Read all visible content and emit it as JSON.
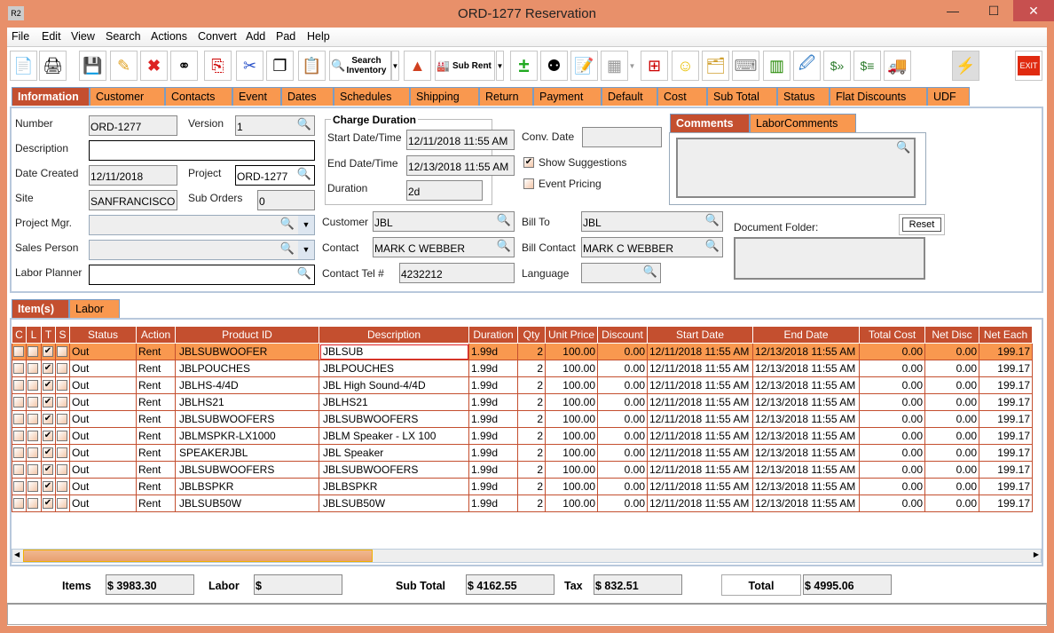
{
  "window": {
    "title": "ORD-1277 Reservation",
    "app_icon": "R2"
  },
  "menu": [
    "File",
    "Edit",
    "View",
    "Search",
    "Actions",
    "Convert",
    "Add",
    "Pad",
    "Help"
  ],
  "toolbar": {
    "search_inventory": "Search Inventory",
    "sub_rent": "Sub Rent",
    "exit": "EXIT"
  },
  "tabs": [
    "Information",
    "Customer",
    "Contacts",
    "Event",
    "Dates",
    "Schedules",
    "Shipping",
    "Return",
    "Payment",
    "Default",
    "Cost",
    "Sub Total",
    "Status",
    "Flat Discounts",
    "UDF"
  ],
  "info": {
    "number_label": "Number",
    "number": "ORD-1277",
    "version_label": "Version",
    "version": "1",
    "description_label": "Description",
    "description": "",
    "date_created_label": "Date Created",
    "date_created": "12/11/2018",
    "project_label": "Project",
    "project": "ORD-1277",
    "site_label": "Site",
    "site": "SANFRANCISCO",
    "sub_orders_label": "Sub Orders",
    "sub_orders": "0",
    "project_mgr_label": "Project Mgr.",
    "project_mgr": "",
    "sales_person_label": "Sales Person",
    "sales_person": "",
    "labor_planner_label": "Labor Planner",
    "labor_planner": "",
    "charge_duration_title": "Charge Duration",
    "start_label": "Start Date/Time",
    "start": "12/11/2018 11:55 AM",
    "end_label": "End Date/Time",
    "end": "12/13/2018 11:55 AM",
    "duration_label": "Duration",
    "duration": "2d",
    "conv_date_label": "Conv. Date",
    "conv_date": "",
    "show_suggestions_label": "Show Suggestions",
    "show_suggestions": true,
    "event_pricing_label": "Event Pricing",
    "event_pricing": false,
    "comment_tabs": [
      "Comments",
      "LaborComments"
    ],
    "comments": "",
    "customer_label": "Customer",
    "customer": "JBL",
    "contact_label": "Contact",
    "contact": "MARK C WEBBER",
    "contact_tel_label": "Contact Tel #",
    "contact_tel": "4232212",
    "bill_to_label": "Bill To",
    "bill_to": "JBL",
    "bill_contact_label": "Bill Contact",
    "bill_contact": "MARK C WEBBER",
    "language_label": "Language",
    "language": "",
    "document_folder_label": "Document Folder:",
    "reset_label": "Reset"
  },
  "item_tabs": [
    "Item(s)",
    "Labor"
  ],
  "table": {
    "columns": [
      "C",
      "L",
      "T",
      "S",
      "Status",
      "Action",
      "Product ID",
      "Description",
      "Duration",
      "Qty",
      "Unit Price",
      "Discount",
      "Start Date",
      "End Date",
      "Total Cost",
      "Net Disc",
      "Net Each"
    ],
    "rows": [
      [
        "JBLSUBWOOFER",
        "JBLSUB"
      ],
      [
        "JBLPOUCHES",
        "JBLPOUCHES"
      ],
      [
        "JBLHS-4/4D",
        "JBL High Sound-4/4D"
      ],
      [
        "JBLHS21",
        "JBLHS21"
      ],
      [
        "JBLSUBWOOFERS",
        "JBLSUBWOOFERS"
      ],
      [
        "JBLMSPKR-LX1000",
        "JBLM Speaker - LX 100"
      ],
      [
        "SPEAKERJBL",
        "JBL Speaker"
      ],
      [
        "JBLSUBWOOFERS",
        "JBLSUBWOOFERS"
      ],
      [
        "JBLBSPKR",
        "JBLBSPKR"
      ],
      [
        "JBLSUB50W",
        "JBLSUB50W"
      ]
    ],
    "row_common": {
      "C": false,
      "L": false,
      "T": true,
      "S": false,
      "status": "Out",
      "action": "Rent",
      "duration": "1.99d",
      "qty": "2",
      "unit_price": "100.00",
      "discount": "0.00",
      "start": "12/11/2018 11:55 AM",
      "end": "12/13/2018 11:55 AM",
      "total_cost": "0.00",
      "net_disc": "0.00",
      "net_each": "199.17"
    },
    "selected_row": 0
  },
  "totals": {
    "items_label": "Items",
    "items": "$ 3983.30",
    "labor_label": "Labor",
    "labor": "$",
    "subtotal_label": "Sub Total",
    "subtotal": "$ 4162.55",
    "tax_label": "Tax",
    "tax": "$ 832.51",
    "total_label": "Total",
    "total": "$ 4995.06"
  },
  "colors": {
    "frame": "#e8906a",
    "tab": "#f9984f",
    "tab_selected": "#c44f2f"
  }
}
